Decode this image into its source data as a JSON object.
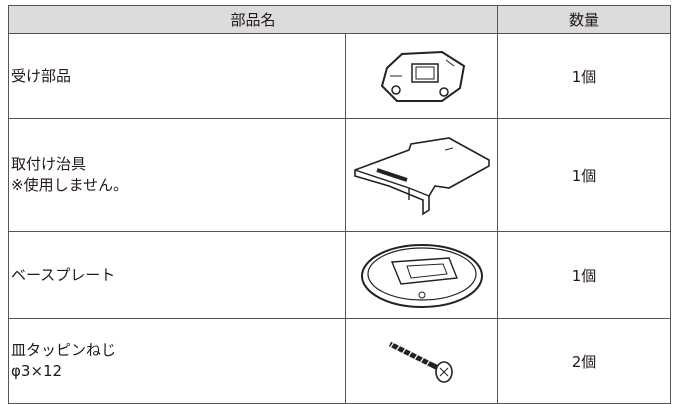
{
  "table": {
    "header": [
      "部品名",
      "数量"
    ],
    "rows": [
      {
        "name": [
          "受け部品"
        ],
        "qty": "1個"
      },
      {
        "name": [
          "取付け治具",
          "※使用しません。"
        ],
        "qty": "1個"
      },
      {
        "name": [
          "ベースプレート"
        ],
        "qty": "1個"
      },
      {
        "name": [
          "皿タッピンねじ",
          "φ3×12"
        ],
        "qty": "2個"
      }
    ]
  }
}
